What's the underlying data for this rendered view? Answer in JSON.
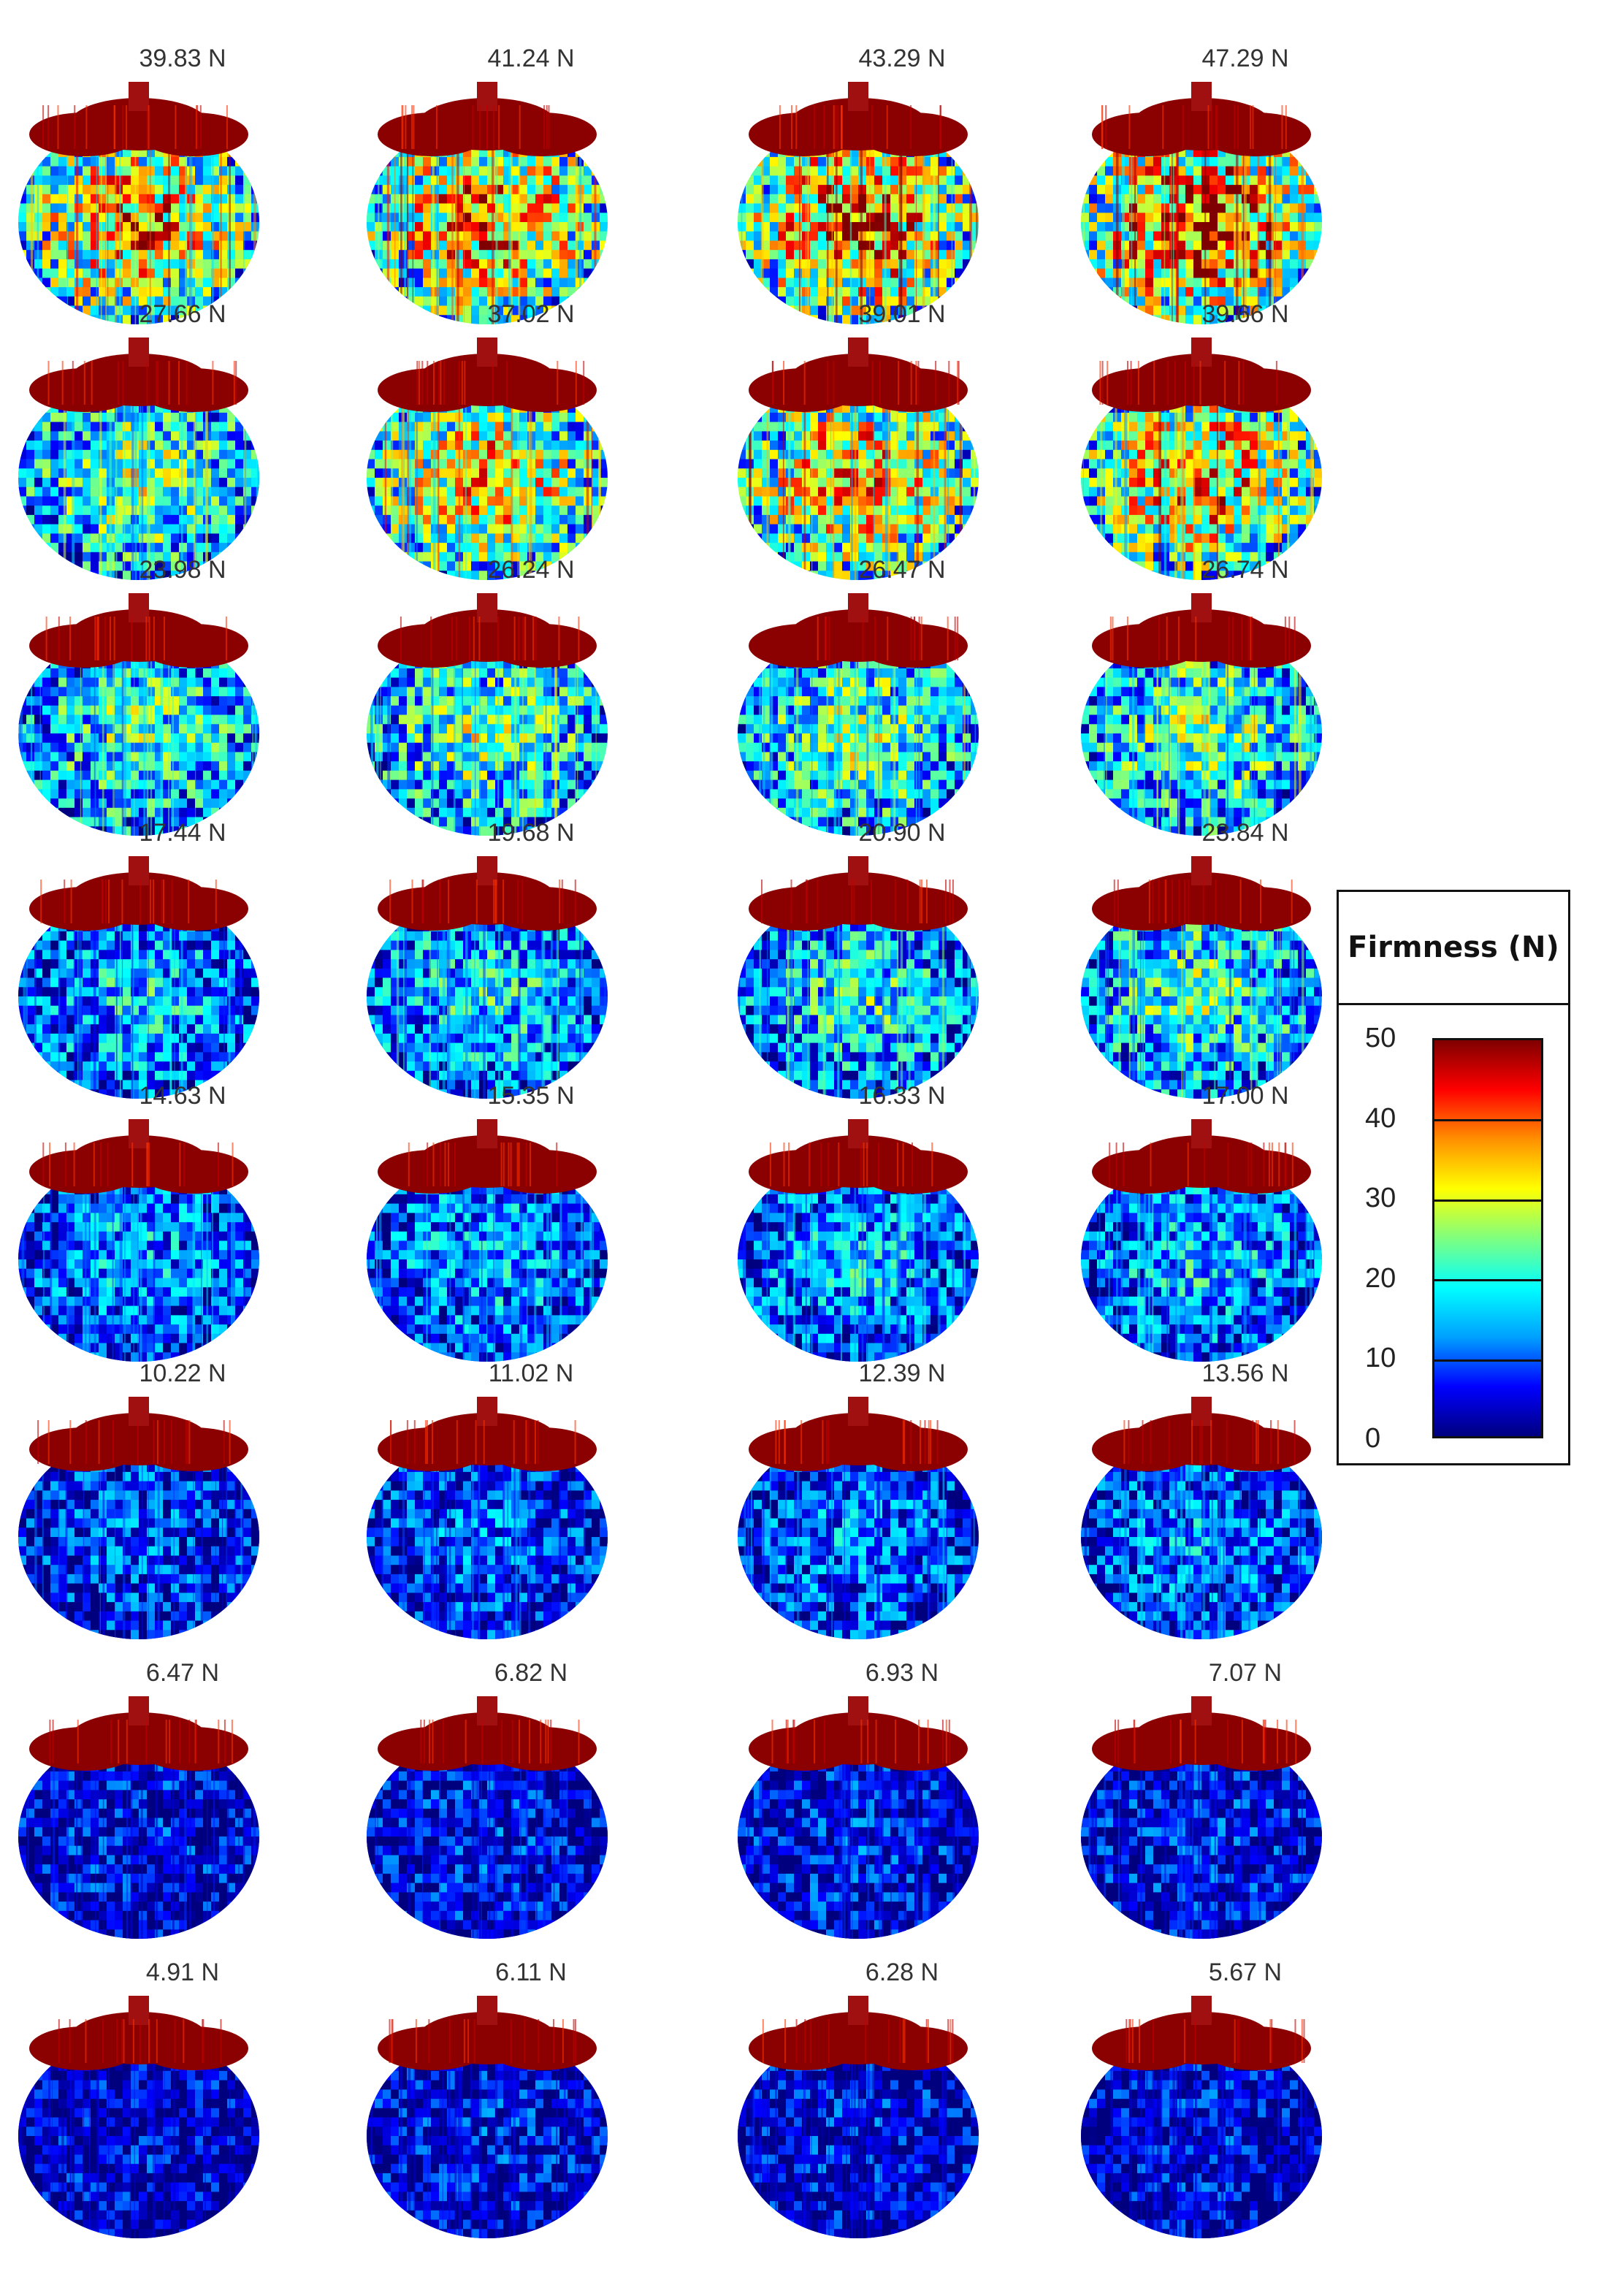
{
  "colorbar": {
    "title": "Firmness (N)",
    "ticks": [
      0,
      10,
      20,
      30,
      40,
      50
    ],
    "stops": [
      "#00007f",
      "#0000ff",
      "#00a0ff",
      "#00ffff",
      "#7fff7f",
      "#ffff00",
      "#ff9000",
      "#ff0000",
      "#7f0000"
    ]
  },
  "samples": [
    {
      "label": "39.83 N",
      "value": 39.83
    },
    {
      "label": "41.24 N",
      "value": 41.24
    },
    {
      "label": "43.29 N",
      "value": 43.29
    },
    {
      "label": "47.29 N",
      "value": 47.29
    },
    {
      "label": "27.66 N",
      "value": 27.66
    },
    {
      "label": "37.02 N",
      "value": 37.02
    },
    {
      "label": "39.01 N",
      "value": 39.01
    },
    {
      "label": "39.66 N",
      "value": 39.66
    },
    {
      "label": "23.98 N",
      "value": 23.98
    },
    {
      "label": "26.24 N",
      "value": 26.24
    },
    {
      "label": "26.47 N",
      "value": 26.47
    },
    {
      "label": "26.74 N",
      "value": 26.74
    },
    {
      "label": "17.44 N",
      "value": 17.44
    },
    {
      "label": "19.68 N",
      "value": 19.68
    },
    {
      "label": "20.90 N",
      "value": 20.9
    },
    {
      "label": "23.84 N",
      "value": 23.84
    },
    {
      "label": "14.63 N",
      "value": 14.63
    },
    {
      "label": "15.35 N",
      "value": 15.35
    },
    {
      "label": "16.33 N",
      "value": 16.33
    },
    {
      "label": "17.00 N",
      "value": 17.0
    },
    {
      "label": "10.22 N",
      "value": 10.22
    },
    {
      "label": "11.02 N",
      "value": 11.02
    },
    {
      "label": "12.39 N",
      "value": 12.39
    },
    {
      "label": "13.56 N",
      "value": 13.56
    },
    {
      "label": "6.47 N",
      "value": 6.47
    },
    {
      "label": "6.82 N",
      "value": 6.82
    },
    {
      "label": "6.93 N",
      "value": 6.93
    },
    {
      "label": "7.07 N",
      "value": 7.07
    },
    {
      "label": "4.91 N",
      "value": 4.91
    },
    {
      "label": "6.11 N",
      "value": 6.11
    },
    {
      "label": "6.28 N",
      "value": 6.28
    },
    {
      "label": "5.67 N",
      "value": 5.67
    }
  ]
}
